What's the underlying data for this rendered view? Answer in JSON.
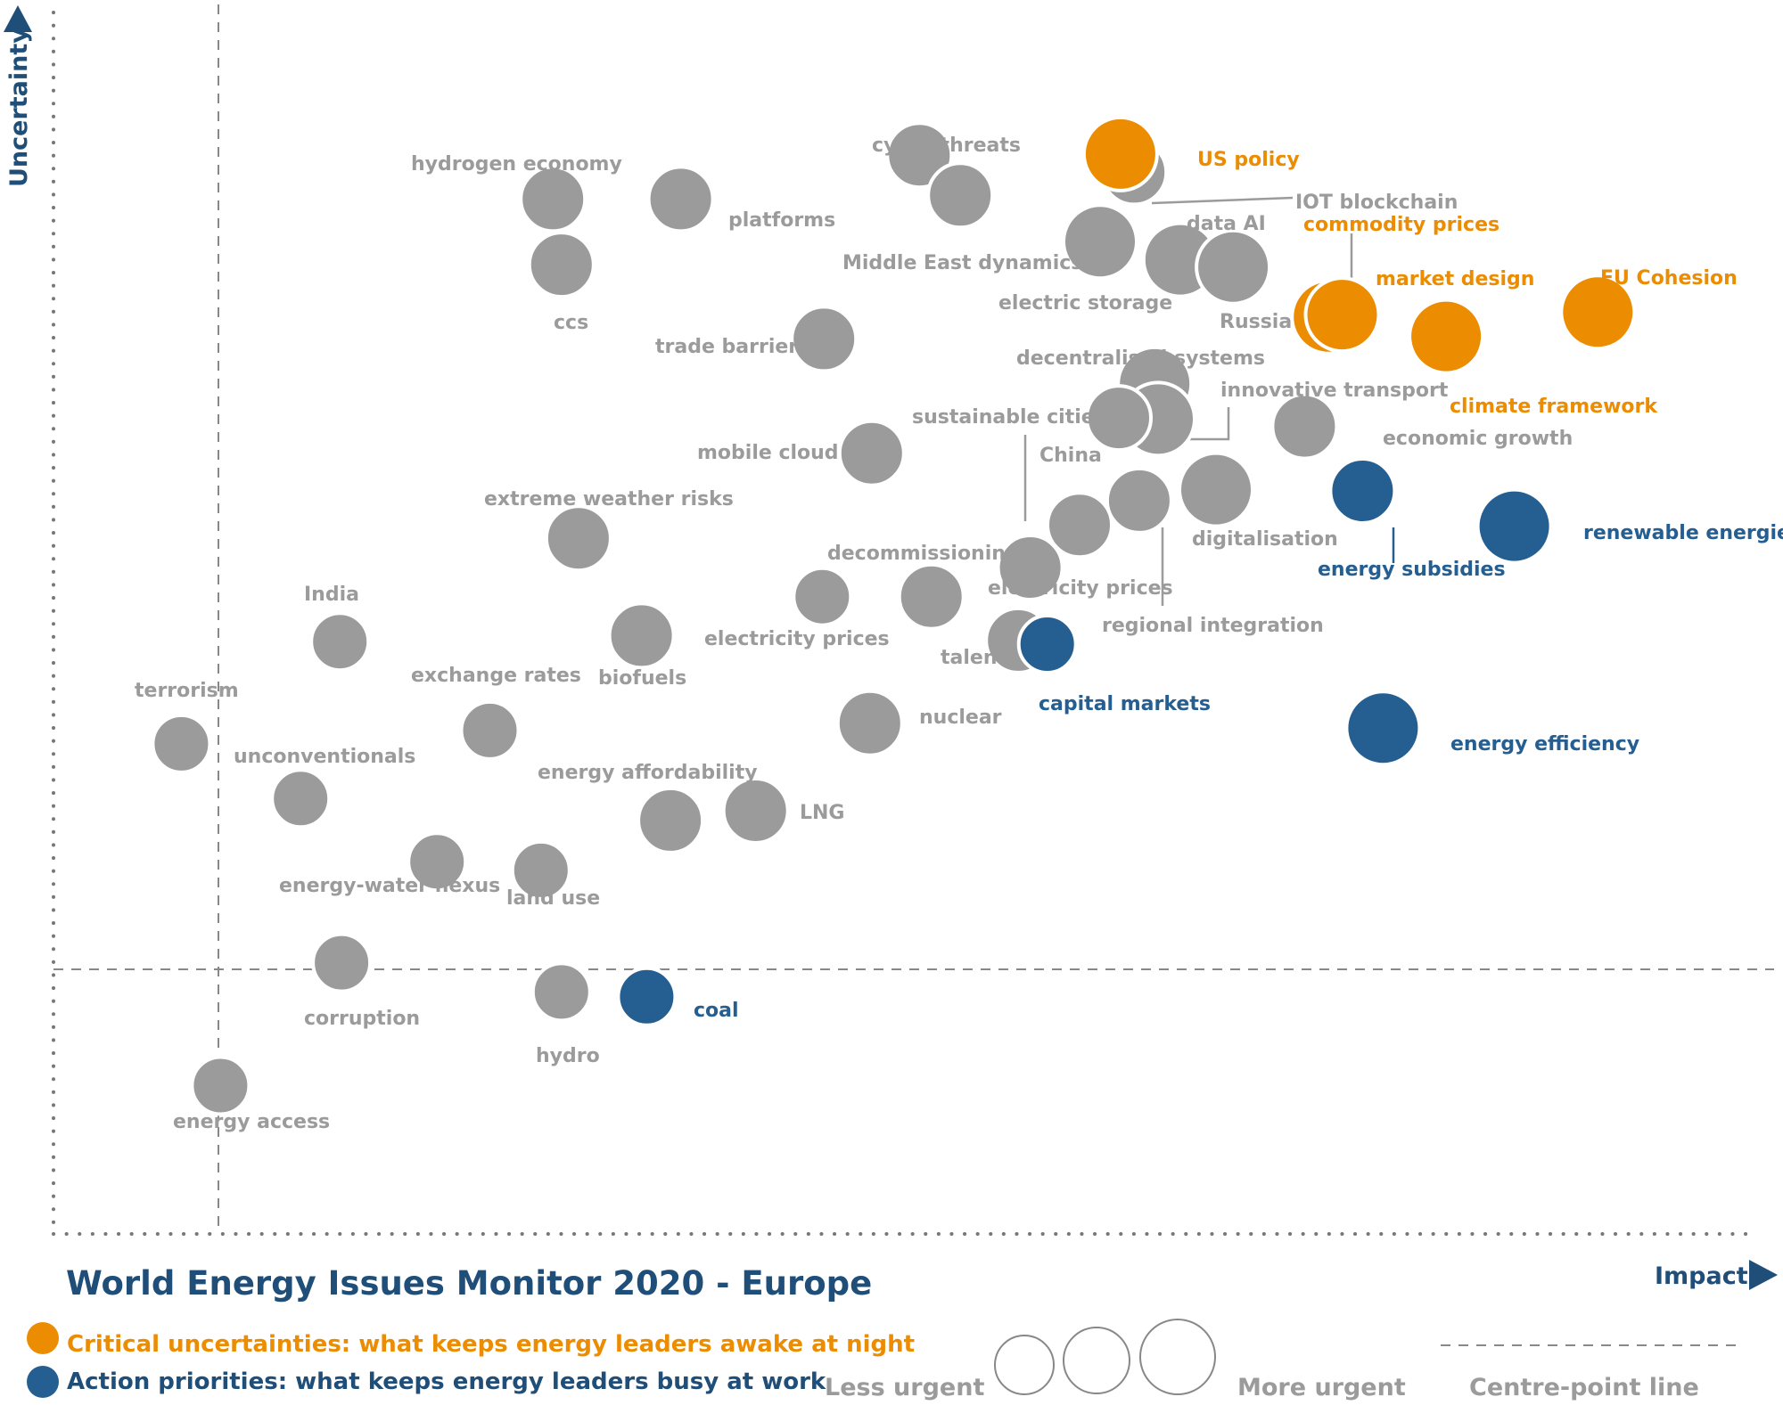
{
  "colors": {
    "gray": "#9b9b9b",
    "orange": "#ec8c00",
    "blue": "#255e91",
    "navy": "#1f4e79",
    "axis": "#777777"
  },
  "chart_data": {
    "type": "scatter",
    "title": "World Energy Issues Monitor 2020 - Europe",
    "xlabel": "Impact",
    "ylabel": "Uncertainty",
    "xlim": [
      0,
      100
    ],
    "ylim": [
      0,
      100
    ],
    "centre_point": {
      "x": 9.5,
      "y": 23.5
    },
    "legend": {
      "critical": "Critical uncertainties: what keeps energy leaders awake at night",
      "action": "Action priorities: what keeps energy leaders busy at work",
      "less_urgent": "Less urgent",
      "more_urgent": "More urgent",
      "centre_line": "Centre-point  line"
    },
    "points": [
      {
        "label": "US policy",
        "x": 62.6,
        "y": 88.8,
        "urgency": 3,
        "category": "critical"
      },
      {
        "label": "commodity prices",
        "x": 74.8,
        "y": 75.4,
        "urgency": 3,
        "category": "critical"
      },
      {
        "label": "market design",
        "x": 75.6,
        "y": 75.6,
        "urgency": 3,
        "category": "critical"
      },
      {
        "label": "climate framework",
        "x": 81.7,
        "y": 73.8,
        "urgency": 3,
        "category": "critical"
      },
      {
        "label": "EU Cohesion",
        "x": 90.6,
        "y": 75.8,
        "urgency": 3,
        "category": "critical"
      },
      {
        "label": "energy subsidies",
        "x": 76.8,
        "y": 61.1,
        "urgency": 2,
        "category": "action"
      },
      {
        "label": "renewable energies",
        "x": 85.7,
        "y": 58.2,
        "urgency": 3,
        "category": "action"
      },
      {
        "label": "energy efficiency",
        "x": 78.0,
        "y": 41.6,
        "urgency": 3,
        "category": "action"
      },
      {
        "label": "capital markets",
        "x": 58.3,
        "y": 48.5,
        "urgency": 1,
        "category": "action"
      },
      {
        "label": "coal",
        "x": 34.8,
        "y": 19.5,
        "urgency": 1,
        "category": "action"
      },
      {
        "label": "hydrogen economy",
        "x": 29.3,
        "y": 85.1,
        "urgency": 2,
        "category": "other"
      },
      {
        "label": "ccs",
        "x": 29.8,
        "y": 79.7,
        "urgency": 2,
        "category": "other"
      },
      {
        "label": "platforms",
        "x": 36.8,
        "y": 85.1,
        "urgency": 2,
        "category": "other"
      },
      {
        "label": "cyber threats",
        "x": 50.8,
        "y": 88.7,
        "urgency": 2,
        "category": "other"
      },
      {
        "label": "Middle East dynamics",
        "x": 53.2,
        "y": 85.4,
        "urgency": 2,
        "category": "other"
      },
      {
        "label": "IOT blockchain",
        "x": 63.4,
        "y": 87.3,
        "urgency": 2,
        "category": "other"
      },
      {
        "label": "electric storage",
        "x": 61.4,
        "y": 81.6,
        "urgency": 3,
        "category": "other"
      },
      {
        "label": "data AI",
        "x": 66.1,
        "y": 80.1,
        "urgency": 3,
        "category": "other"
      },
      {
        "label": "Russia",
        "x": 69.2,
        "y": 79.5,
        "urgency": 3,
        "category": "other"
      },
      {
        "label": "trade barriers",
        "x": 45.2,
        "y": 73.6,
        "urgency": 2,
        "category": "other"
      },
      {
        "label": "decentralised systems",
        "x": 64.6,
        "y": 69.9,
        "urgency": 3,
        "category": "other"
      },
      {
        "label": "innovative transport",
        "x": 64.8,
        "y": 67.0,
        "urgency": 3,
        "category": "other"
      },
      {
        "label": "China",
        "x": 62.5,
        "y": 67.1,
        "urgency": 2,
        "category": "other"
      },
      {
        "label": "sustainable cities",
        "x": 57.3,
        "y": 54.8,
        "urgency": 2,
        "category": "other"
      },
      {
        "label": "mobile cloud",
        "x": 48.0,
        "y": 64.2,
        "urgency": 2,
        "category": "other"
      },
      {
        "label": "economic growth",
        "x": 73.4,
        "y": 66.4,
        "urgency": 2,
        "category": "other"
      },
      {
        "label": "digitalisation",
        "x": 68.2,
        "y": 61.2,
        "urgency": 3,
        "category": "other"
      },
      {
        "label": "regional integration",
        "x": 63.7,
        "y": 60.3,
        "urgency": 2,
        "category": "other"
      },
      {
        "label": "electricity prices",
        "x": 60.2,
        "y": 58.3,
        "urgency": 2,
        "category": "other"
      },
      {
        "label": "extreme weather risks",
        "x": 30.8,
        "y": 57.2,
        "urgency": 2,
        "category": "other"
      },
      {
        "label": "decommissioning",
        "x": 45.1,
        "y": 52.4,
        "urgency": 1,
        "category": "other"
      },
      {
        "label": "electricity prices ",
        "x": 51.5,
        "y": 52.4,
        "urgency": 2,
        "category": "other"
      },
      {
        "label": "talent",
        "x": 56.6,
        "y": 48.8,
        "urgency": 2,
        "category": "other"
      },
      {
        "label": "India",
        "x": 16.8,
        "y": 48.7,
        "urgency": 1,
        "category": "other"
      },
      {
        "label": "biofuels",
        "x": 34.5,
        "y": 49.2,
        "urgency": 2,
        "category": "other"
      },
      {
        "label": "exchange rates",
        "x": 25.6,
        "y": 41.4,
        "urgency": 1,
        "category": "other"
      },
      {
        "label": "terrorism",
        "x": 7.5,
        "y": 40.3,
        "urgency": 1,
        "category": "other"
      },
      {
        "label": "nuclear",
        "x": 47.9,
        "y": 42.0,
        "urgency": 2,
        "category": "other"
      },
      {
        "label": "unconventionals",
        "x": 14.5,
        "y": 35.8,
        "urgency": 1,
        "category": "other"
      },
      {
        "label": "energy affordability",
        "x": 36.2,
        "y": 34.0,
        "urgency": 2,
        "category": "other"
      },
      {
        "label": "LNG",
        "x": 41.2,
        "y": 34.8,
        "urgency": 2,
        "category": "other"
      },
      {
        "label": "energy-water nexus",
        "x": 22.5,
        "y": 30.6,
        "urgency": 1,
        "category": "other"
      },
      {
        "label": "land use",
        "x": 28.6,
        "y": 29.9,
        "urgency": 1,
        "category": "other"
      },
      {
        "label": "corruption",
        "x": 16.9,
        "y": 22.3,
        "urgency": 1,
        "category": "other"
      },
      {
        "label": "hydro",
        "x": 29.8,
        "y": 19.9,
        "urgency": 1,
        "category": "other"
      },
      {
        "label": "energy access",
        "x": 9.8,
        "y": 12.2,
        "urgency": 1,
        "category": "other"
      }
    ]
  }
}
